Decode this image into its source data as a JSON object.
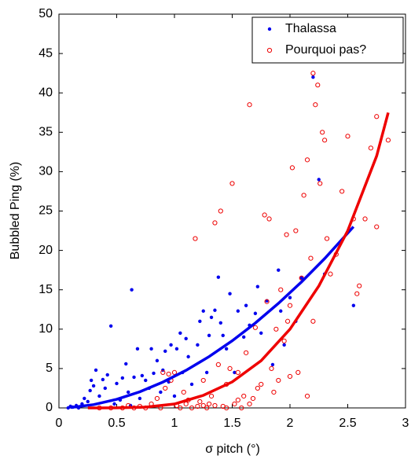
{
  "chart_data": {
    "type": "scatter",
    "xlabel": "σ pitch (°)",
    "ylabel": "Bubbled Ping (%)",
    "xlim": [
      0,
      3
    ],
    "ylim": [
      0,
      50
    ],
    "xticks": [
      0,
      0.5,
      1,
      1.5,
      2,
      2.5,
      3
    ],
    "yticks": [
      0,
      5,
      10,
      15,
      20,
      25,
      30,
      35,
      40,
      45,
      50
    ],
    "legend": "upper right",
    "series": [
      {
        "name": "Thalassa",
        "color": "#0000ee",
        "marker": "dot",
        "x": [
          0.08,
          0.1,
          0.12,
          0.15,
          0.17,
          0.2,
          0.22,
          0.25,
          0.27,
          0.28,
          0.3,
          0.32,
          0.35,
          0.38,
          0.4,
          0.42,
          0.45,
          0.48,
          0.5,
          0.53,
          0.55,
          0.58,
          0.6,
          0.62,
          0.63,
          0.65,
          0.68,
          0.7,
          0.72,
          0.75,
          0.78,
          0.8,
          0.82,
          0.85,
          0.88,
          0.9,
          0.92,
          0.95,
          0.97,
          1.0,
          1.02,
          1.05,
          1.07,
          1.1,
          1.12,
          1.15,
          1.2,
          1.22,
          1.25,
          1.28,
          1.3,
          1.32,
          1.35,
          1.38,
          1.4,
          1.42,
          1.45,
          1.48,
          1.52,
          1.55,
          1.6,
          1.62,
          1.65,
          1.7,
          1.72,
          1.75,
          1.8,
          1.85,
          1.9,
          1.92,
          1.95,
          2.0,
          2.05,
          2.1,
          2.2,
          2.25,
          2.3,
          2.55
        ],
        "values": [
          0,
          0.2,
          0.1,
          0.3,
          0,
          0.5,
          1.2,
          0.8,
          2.2,
          3.5,
          2.8,
          4.8,
          1.5,
          3.6,
          2.5,
          4.2,
          10.4,
          0.5,
          3.1,
          1.0,
          3.8,
          5.6,
          2.0,
          0.3,
          15,
          3.9,
          7.5,
          1.2,
          4.1,
          3.5,
          2.5,
          7.5,
          4.4,
          6.0,
          2.0,
          4.8,
          7.2,
          3.3,
          8.0,
          1.5,
          7.5,
          9.5,
          4.5,
          8.8,
          6.5,
          3.0,
          8.0,
          11,
          12.3,
          4.5,
          9.2,
          11.5,
          12.4,
          16.6,
          10.8,
          9.2,
          7.5,
          14.5,
          4.5,
          12.3,
          9.0,
          13.0,
          10.5,
          12.0,
          15.4,
          9.5,
          13.6,
          5.5,
          17.5,
          12.3,
          8.0,
          14.0,
          11.0,
          16.5,
          42,
          29,
          17.0,
          13
        ]
      },
      {
        "name": "Pourquoi pas?",
        "color": "#ee0000",
        "marker": "circle",
        "x": [
          0.35,
          0.45,
          0.55,
          0.6,
          0.65,
          0.7,
          0.75,
          0.8,
          0.85,
          0.88,
          0.9,
          0.92,
          0.95,
          0.97,
          1.0,
          1.02,
          1.05,
          1.08,
          1.1,
          1.12,
          1.15,
          1.18,
          1.2,
          1.22,
          1.25,
          1.28,
          1.3,
          1.32,
          1.35,
          1.38,
          1.4,
          1.42,
          1.45,
          1.48,
          1.5,
          1.52,
          1.55,
          1.58,
          1.6,
          1.62,
          1.65,
          1.68,
          1.7,
          1.72,
          1.75,
          1.78,
          1.8,
          1.82,
          1.84,
          1.86,
          1.88,
          1.9,
          1.92,
          1.95,
          1.97,
          2.0,
          2.02,
          2.05,
          2.07,
          2.1,
          2.12,
          2.15,
          2.18,
          2.2,
          2.22,
          2.24,
          2.26,
          2.28,
          2.3,
          2.32,
          2.35,
          2.4,
          2.45,
          2.5,
          2.55,
          2.6,
          2.65,
          2.7,
          2.75,
          2.85,
          2.75,
          2.58,
          2.2,
          2.0,
          1.98,
          2.15,
          1.35,
          1.45,
          1.55,
          1.65,
          1.25
        ],
        "values": [
          0,
          0,
          0,
          0.3,
          0,
          0.2,
          0,
          0.5,
          1.2,
          0,
          4.5,
          2.5,
          4.3,
          3.5,
          4.5,
          0.3,
          0,
          2.0,
          0.5,
          1.0,
          0,
          21.5,
          0.2,
          0.8,
          3.5,
          0,
          0.5,
          1.5,
          23.5,
          5.5,
          25,
          0.2,
          3.0,
          5.0,
          28.5,
          0.5,
          4.5,
          0,
          1.5,
          7.0,
          38.5,
          1.2,
          10.2,
          2.5,
          3.0,
          24.5,
          13.5,
          24,
          5.0,
          2.0,
          10.0,
          3.5,
          15.0,
          8.5,
          22,
          13.0,
          30.5,
          22.5,
          4.5,
          16.5,
          27,
          31.5,
          19,
          42.5,
          38.5,
          41,
          28.5,
          35,
          34,
          21.5,
          17,
          19.5,
          27.5,
          34.5,
          24,
          15.5,
          24,
          33,
          23,
          34,
          37,
          14.5,
          11,
          4,
          11,
          1.5,
          0.3,
          0,
          1.0,
          0.5,
          0.3
        ]
      }
    ],
    "fits": [
      {
        "color": "#0000ee",
        "x": [
          0.1,
          0.3,
          0.5,
          0.7,
          0.9,
          1.1,
          1.3,
          1.5,
          1.7,
          1.9,
          2.1,
          2.3,
          2.55
        ],
        "values": [
          0.05,
          0.42,
          1.09,
          2.05,
          3.28,
          4.77,
          6.52,
          8.52,
          10.78,
          13.27,
          16.0,
          18.96,
          23
        ]
      },
      {
        "color": "#ee0000",
        "x": [
          0.25,
          0.5,
          0.75,
          1.0,
          1.25,
          1.5,
          1.75,
          2.0,
          2.25,
          2.5,
          2.75,
          2.85
        ],
        "values": [
          0,
          0.01,
          0.1,
          0.5,
          1.6,
          3.3,
          6.0,
          10.0,
          15.5,
          22.5,
          32,
          37.5
        ]
      }
    ]
  }
}
